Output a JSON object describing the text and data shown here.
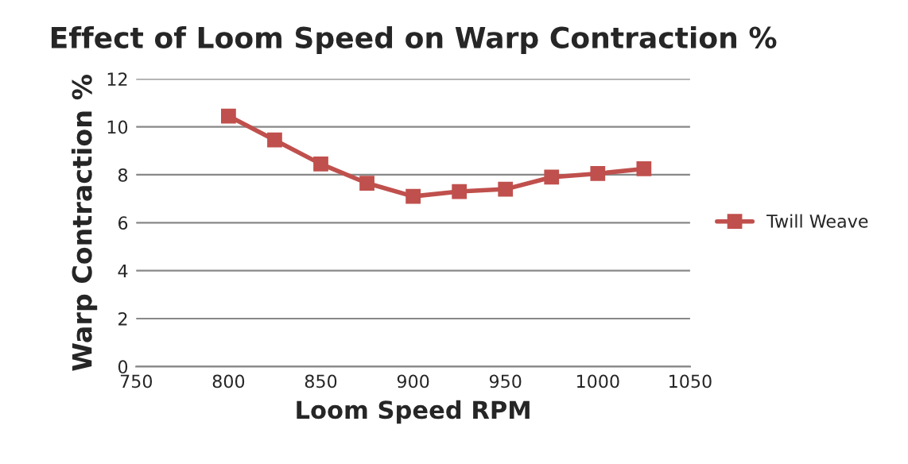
{
  "chart_data": {
    "type": "line",
    "title": "Effect of Loom Speed on Warp Contraction %",
    "xlabel": "Loom Speed RPM",
    "ylabel": "Warp Contraction %",
    "x": [
      800,
      825,
      850,
      875,
      900,
      925,
      950,
      975,
      1000,
      1025
    ],
    "series": [
      {
        "name": "Twill Weave",
        "color": "#c0504d",
        "values": [
          10.45,
          9.45,
          8.45,
          7.65,
          7.1,
          7.3,
          7.4,
          7.9,
          8.05,
          8.25
        ]
      }
    ],
    "xlim": [
      750,
      1050
    ],
    "xticks": [
      750,
      800,
      850,
      900,
      950,
      1000,
      1050
    ],
    "ylim": [
      0,
      12
    ],
    "yticks": [
      0,
      2,
      4,
      6,
      8,
      10,
      12
    ],
    "grid": "y",
    "legend": "right",
    "marker": "square",
    "line_style": "solid"
  }
}
